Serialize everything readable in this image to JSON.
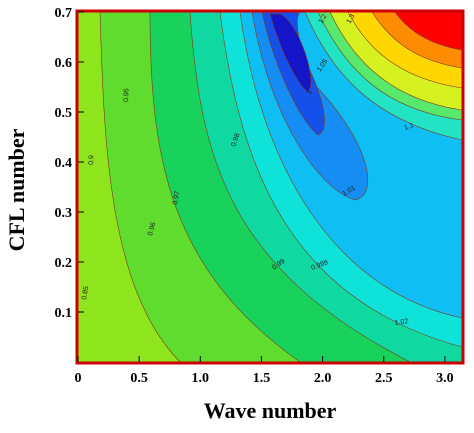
{
  "chart_data": {
    "type": "contour",
    "title": "",
    "xlabel": "Wave number",
    "ylabel": "CFL number",
    "xlim": [
      0,
      3.14
    ],
    "ylim": [
      0,
      0.7
    ],
    "xticks": [
      "0",
      "0.5",
      "1.0",
      "1.5",
      "2.0",
      "2.5",
      "3.0"
    ],
    "yticks": [
      "0.1",
      "0.2",
      "0.3",
      "0.4",
      "0.5",
      "0.6",
      "0.7"
    ],
    "levels": [
      {
        "value": 0.85,
        "label": "0.85",
        "color": "#8ee51e"
      },
      {
        "value": 0.9,
        "label": "0.9",
        "color": "#5fdc2d"
      },
      {
        "value": 0.95,
        "label": "0.95",
        "color": "#19d25c"
      },
      {
        "value": 0.96,
        "label": "0.96",
        "color": "#0fd9a0"
      },
      {
        "value": 0.97,
        "label": "0.97",
        "color": "#0fe2d8"
      },
      {
        "value": 0.98,
        "label": "0.98",
        "color": "#0fbff4"
      },
      {
        "value": 0.99,
        "label": "0.99",
        "color": "#168df2"
      },
      {
        "value": 0.999,
        "label": "0.999",
        "color": "#1550ea"
      },
      {
        "value": 1.0,
        "label": "1",
        "color": "#1414c8"
      },
      {
        "value": 1.01,
        "label": "1.01",
        "color": "#22e3c4"
      },
      {
        "value": 1.02,
        "label": "1.02",
        "color": "#58e86c"
      },
      {
        "value": 1.05,
        "label": "1.05",
        "color": "#d7f020"
      },
      {
        "value": 1.1,
        "label": "1.1",
        "color": "#ffd700"
      },
      {
        "value": 1.2,
        "label": "1.2",
        "color": "#ff8c00"
      },
      {
        "value": 1.3,
        "label": "1.3",
        "color": "#ff0000"
      }
    ],
    "contour_labels": [
      "0.85",
      "0.9",
      "0.95",
      "0.96",
      "0.97",
      "0.98",
      "0.99",
      "0.999",
      "1",
      "1.01",
      "1.02",
      "1.05",
      "1.1",
      "1.2",
      "1.3"
    ],
    "grid": false,
    "legend": "none",
    "frame_color": "#cc0000"
  }
}
